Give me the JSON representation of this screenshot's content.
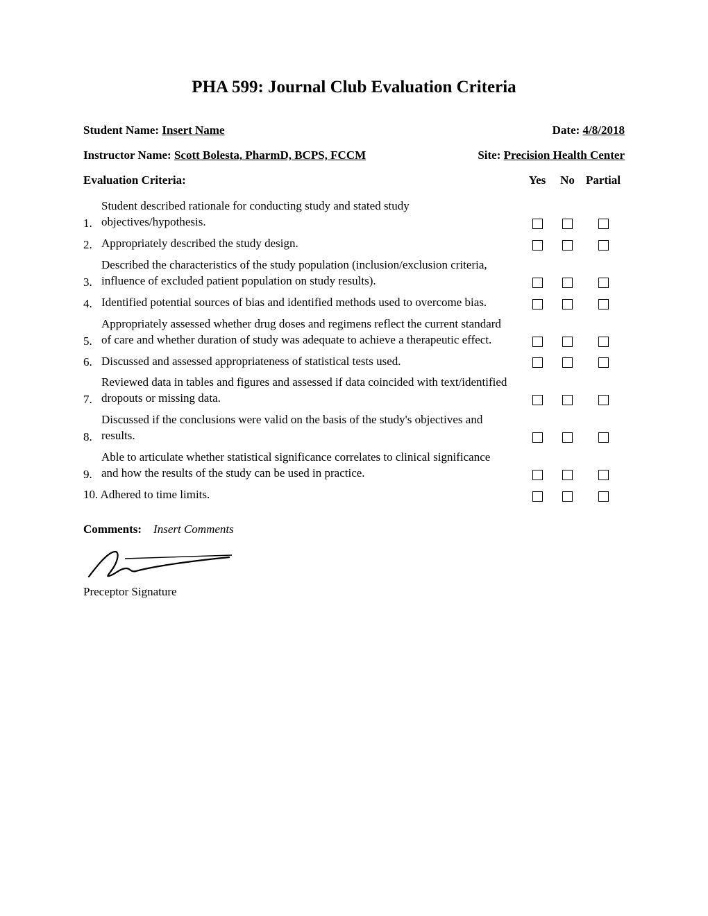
{
  "title": "PHA 599: Journal Club Evaluation Criteria",
  "header": {
    "studentLabel": "Student Name:",
    "studentValue": "Insert Name",
    "dateLabel": "Date:",
    "dateValue": "4/8/2018",
    "instructorLabel": "Instructor Name:",
    "instructorValue": "Scott Bolesta, PharmD, BCPS, FCCM",
    "siteLabel": "Site:",
    "siteValue": "Precision Health Center"
  },
  "criteriaLabel": "Evaluation Criteria:",
  "columns": {
    "yes": "Yes",
    "no": "No",
    "partial": "Partial"
  },
  "criteria": [
    {
      "num": "1.",
      "text": "Student described rationale for conducting study and stated study objectives/hypothesis."
    },
    {
      "num": "2.",
      "text": "Appropriately described the study design."
    },
    {
      "num": "3.",
      "text": "Described the characteristics of the study population (inclusion/exclusion criteria, influence of excluded patient population on study results)."
    },
    {
      "num": "4.",
      "text": "Identified potential sources of bias and identified methods used to overcome bias."
    },
    {
      "num": "5.",
      "text": "Appropriately assessed whether drug doses and regimens reflect the current standard of care and whether duration of study was adequate to achieve a therapeutic effect."
    },
    {
      "num": "6.",
      "text": "Discussed and assessed appropriateness of statistical tests used."
    },
    {
      "num": "7.",
      "text": "Reviewed data in tables and figures and assessed if data coincided with text/identified dropouts or missing data."
    },
    {
      "num": "8.",
      "text": "Discussed if the conclusions were valid on the basis of the study's objectives and results."
    },
    {
      "num": "9.",
      "text": "Able to articulate whether statistical significance correlates to clinical significance and how the results of the study can be used in practice."
    },
    {
      "num": "10.",
      "text": "Adhered to time limits."
    }
  ],
  "commentsLabel": "Comments:",
  "commentsValue": "Insert Comments",
  "signatureLabel": "Preceptor Signature",
  "style": {
    "pageWidth": 1020,
    "pageHeight": 1320,
    "background": "#ffffff",
    "textColor": "#000000",
    "fontFamily": "Times New Roman",
    "titleFontSize": 25,
    "bodyFontSize": 17,
    "checkboxSize": 15,
    "checkboxBorder": "#000000",
    "signatureStroke": "#000000",
    "signatureStrokeWidth": 2
  }
}
